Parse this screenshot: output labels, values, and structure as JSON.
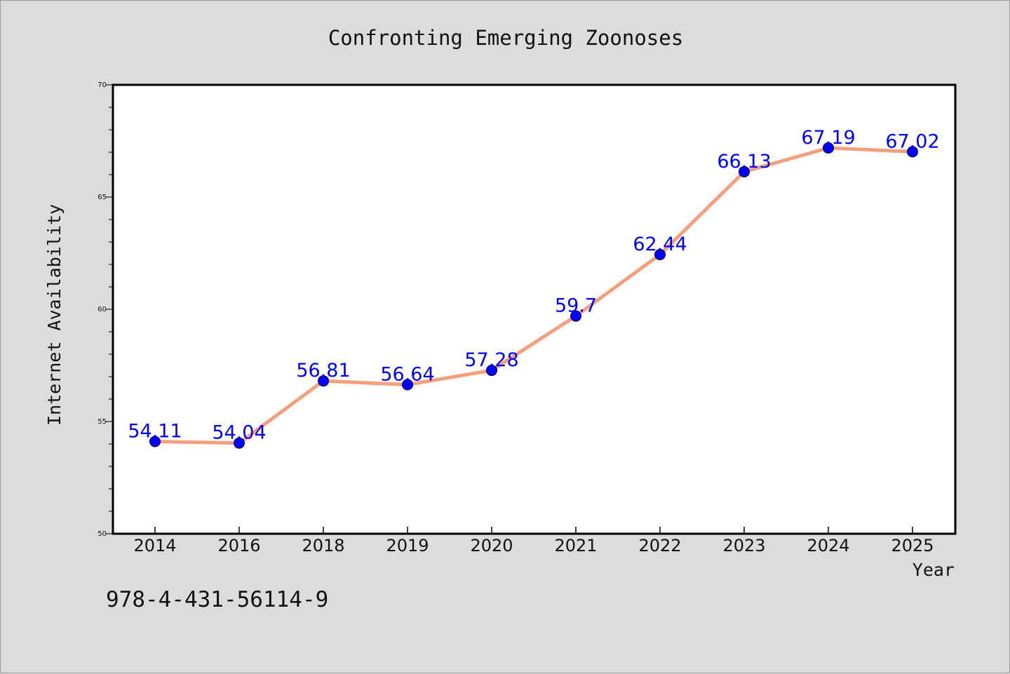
{
  "chart_data": {
    "type": "line",
    "title": "Confronting Emerging Zoonoses",
    "xlabel": "Year",
    "ylabel": "Internet Availability",
    "categories": [
      "2014",
      "2016",
      "2018",
      "2019",
      "2020",
      "2021",
      "2022",
      "2023",
      "2024",
      "2025"
    ],
    "series": [
      {
        "values": [
          54.11,
          54.04,
          56.81,
          56.64,
          57.28,
          59.7,
          62.44,
          66.13,
          67.19,
          67.02
        ],
        "data_labels": [
          "54.11",
          "54.04",
          "56.81",
          "56.64",
          "57.28",
          "59.7",
          "62.44",
          "66.13",
          "67.19",
          "67.02"
        ],
        "line_color": "#f4a07e",
        "marker_color": "#0000ff"
      }
    ],
    "ylim": [
      50,
      70
    ],
    "yticks": [
      "50",
      "55",
      "60",
      "65",
      "70"
    ],
    "grid": false,
    "legend": "none"
  },
  "footer": {
    "text": "978-4-431-56114-9"
  },
  "colors": {
    "background": "#dcdcdc",
    "plot_background": "#ffffff",
    "label_color": "#0000ff"
  }
}
